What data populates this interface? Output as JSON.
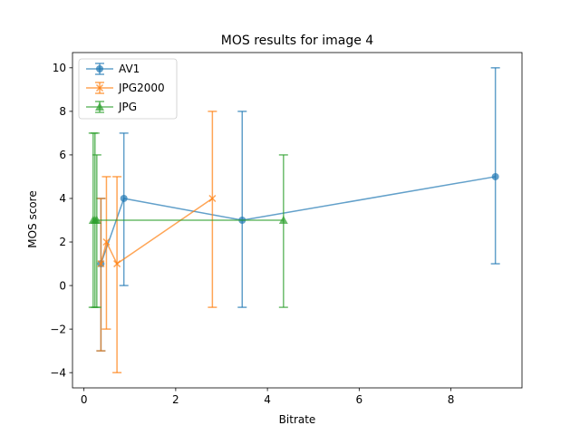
{
  "chart_data": {
    "type": "line",
    "title": "MOS results for image 4",
    "xlabel": "Bitrate",
    "ylabel": "MOS score",
    "xlim": [
      -0.25,
      9.55
    ],
    "ylim": [
      -4.7,
      10.7
    ],
    "xticks": [
      0,
      2,
      4,
      6,
      8
    ],
    "yticks": [
      -4,
      -2,
      0,
      2,
      4,
      6,
      8,
      10
    ],
    "grid": false,
    "legend_position": "top-left",
    "series": [
      {
        "name": "AV1",
        "color": "#1f77b4",
        "marker": "circle",
        "points": [
          {
            "x": 0.37,
            "y": 1,
            "ylow": -3,
            "yhigh": 4
          },
          {
            "x": 0.87,
            "y": 4,
            "ylow": 0,
            "yhigh": 7
          },
          {
            "x": 3.45,
            "y": 3,
            "ylow": -1,
            "yhigh": 8
          },
          {
            "x": 8.97,
            "y": 5,
            "ylow": 1,
            "yhigh": 10
          }
        ]
      },
      {
        "name": "JPG2000",
        "color": "#ff7f0e",
        "marker": "x",
        "points": [
          {
            "x": 0.37,
            "y": 1,
            "ylow": -3,
            "yhigh": 4
          },
          {
            "x": 0.49,
            "y": 2,
            "ylow": -2,
            "yhigh": 5
          },
          {
            "x": 0.72,
            "y": 1,
            "ylow": -4,
            "yhigh": 5
          },
          {
            "x": 2.8,
            "y": 4,
            "ylow": -1,
            "yhigh": 8
          }
        ]
      },
      {
        "name": "JPG",
        "color": "#2ca02c",
        "marker": "triangle",
        "points": [
          {
            "x": 0.2,
            "y": 3,
            "ylow": -1,
            "yhigh": 7
          },
          {
            "x": 0.24,
            "y": 3,
            "ylow": -1,
            "yhigh": 7
          },
          {
            "x": 0.28,
            "y": 3,
            "ylow": -1,
            "yhigh": 6
          },
          {
            "x": 4.35,
            "y": 3,
            "ylow": -1,
            "yhigh": 6
          }
        ]
      }
    ]
  }
}
